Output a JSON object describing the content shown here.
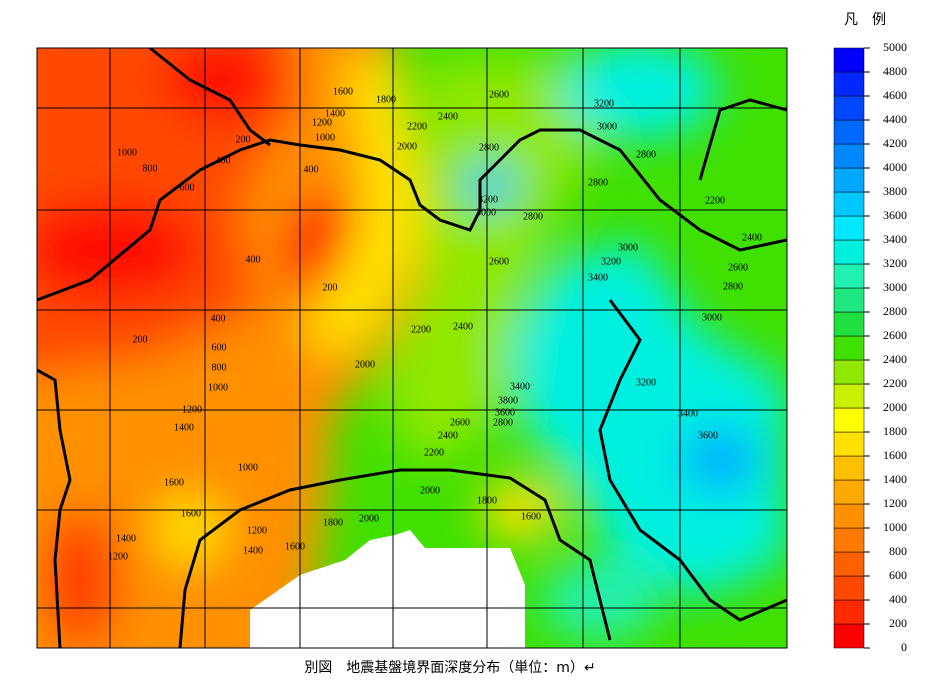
{
  "legend": {
    "title": "凡　例",
    "ticks": [
      0,
      200,
      400,
      600,
      800,
      1000,
      1200,
      1400,
      1600,
      1800,
      2000,
      2200,
      2400,
      2600,
      2800,
      3000,
      3200,
      3400,
      3600,
      3800,
      4000,
      4200,
      4400,
      4600,
      4800,
      5000
    ],
    "colors": [
      "#ff0000",
      "#ff2a00",
      "#ff4800",
      "#ff6000",
      "#ff7a00",
      "#ff9000",
      "#ffa800",
      "#ffc000",
      "#ffe000",
      "#ffff00",
      "#c8f000",
      "#90e800",
      "#40e000",
      "#20e040",
      "#20e880",
      "#20f0b0",
      "#00f0e0",
      "#00e8ff",
      "#00c8ff",
      "#00a8ff",
      "#0088ff",
      "#0068ff",
      "#0048ff",
      "#0028ff",
      "#0000ff"
    ]
  },
  "contour_labels": [
    1600,
    1800,
    1400,
    1200,
    1000,
    200,
    2200,
    2400,
    2600,
    3200,
    3000,
    2800,
    2800,
    2800,
    2000,
    1000,
    800,
    400,
    400,
    600,
    3200,
    3000,
    2800,
    2200,
    2400,
    3000,
    3200,
    3400,
    2600,
    2600,
    2800,
    400,
    200,
    400,
    200,
    2200,
    2400,
    3000,
    600,
    800,
    1000,
    2000,
    3400,
    3200,
    3800,
    3600,
    2800,
    1200,
    1400,
    2600,
    2400,
    3400,
    3600,
    2200,
    1000,
    1600,
    2000,
    1800,
    1600,
    1600,
    2000,
    1800,
    1200,
    1400,
    1200,
    1400,
    1600
  ],
  "caption": "別図　地震基盤境界面深度分布（単位：m）↵"
}
